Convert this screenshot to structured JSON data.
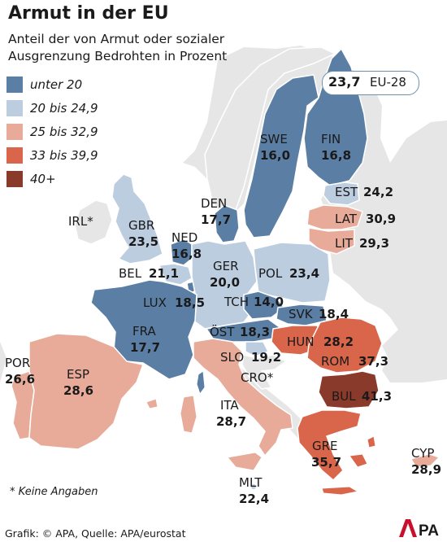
{
  "title": "Armut in der EU",
  "subtitle": {
    "line1": "Anteil der von Armut oder sozialer",
    "line2": "Ausgrenzung Bedrohten in Prozent"
  },
  "legend": [
    {
      "label": "unter 20",
      "color": "#5b7ea4"
    },
    {
      "label": "20 bis 24,9",
      "color": "#bccde0"
    },
    {
      "label": "25 bis 32,9",
      "color": "#e8ab99"
    },
    {
      "label": "33 bis 39,9",
      "color": "#d9664a"
    },
    {
      "label": "40+",
      "color": "#8a3a2a"
    }
  ],
  "eu28": {
    "value": "23,7",
    "label": "EU-28"
  },
  "countries": {
    "SWE": {
      "code": "SWE",
      "value": "16,0"
    },
    "FIN": {
      "code": "FIN",
      "value": "16,8"
    },
    "DEN": {
      "code": "DEN",
      "value": "17,7"
    },
    "EST": {
      "code": "EST",
      "value": "24,2"
    },
    "LAT": {
      "code": "LAT",
      "value": "30,9"
    },
    "LIT": {
      "code": "LIT",
      "value": "29,3"
    },
    "IRL": {
      "code": "IRL*"
    },
    "GBR": {
      "code": "GBR",
      "value": "23,5"
    },
    "NED": {
      "code": "NED",
      "value": "16,8"
    },
    "BEL": {
      "code": "BEL",
      "value": "21,1"
    },
    "GER": {
      "code": "GER",
      "value": "20,0"
    },
    "POL": {
      "code": "POL",
      "value": "23,4"
    },
    "LUX": {
      "code": "LUX",
      "value": "18,5"
    },
    "TCH": {
      "code": "TCH",
      "value": "14,0"
    },
    "SVK": {
      "code": "SVK",
      "value": "18,4"
    },
    "FRA": {
      "code": "FRA",
      "value": "17,7"
    },
    "OST": {
      "code": "ÖST",
      "value": "18,3"
    },
    "HUN": {
      "code": "HUN",
      "value": "28,2"
    },
    "SLO": {
      "code": "SLO",
      "value": "19,2"
    },
    "ROM": {
      "code": "ROM",
      "value": "37,3"
    },
    "CRO": {
      "code": "CRO*"
    },
    "BUL": {
      "code": "BUL",
      "value": "41,3"
    },
    "POR": {
      "code": "POR",
      "value": "26,6"
    },
    "ESP": {
      "code": "ESP",
      "value": "28,6"
    },
    "ITA": {
      "code": "ITA",
      "value": "28,7"
    },
    "GRE": {
      "code": "GRE",
      "value": "35,7"
    },
    "CYP": {
      "code": "CYP",
      "value": "28,9"
    },
    "MLT": {
      "code": "MLT",
      "value": "22,4"
    }
  },
  "footnote": "* Keine Angaben",
  "source": "Grafik: © APA, Quelle: APA/eurostat",
  "logo": "APA",
  "colors": {
    "non_eu": "#e6e6e6",
    "sea": "#ffffff",
    "border": "#ffffff"
  }
}
